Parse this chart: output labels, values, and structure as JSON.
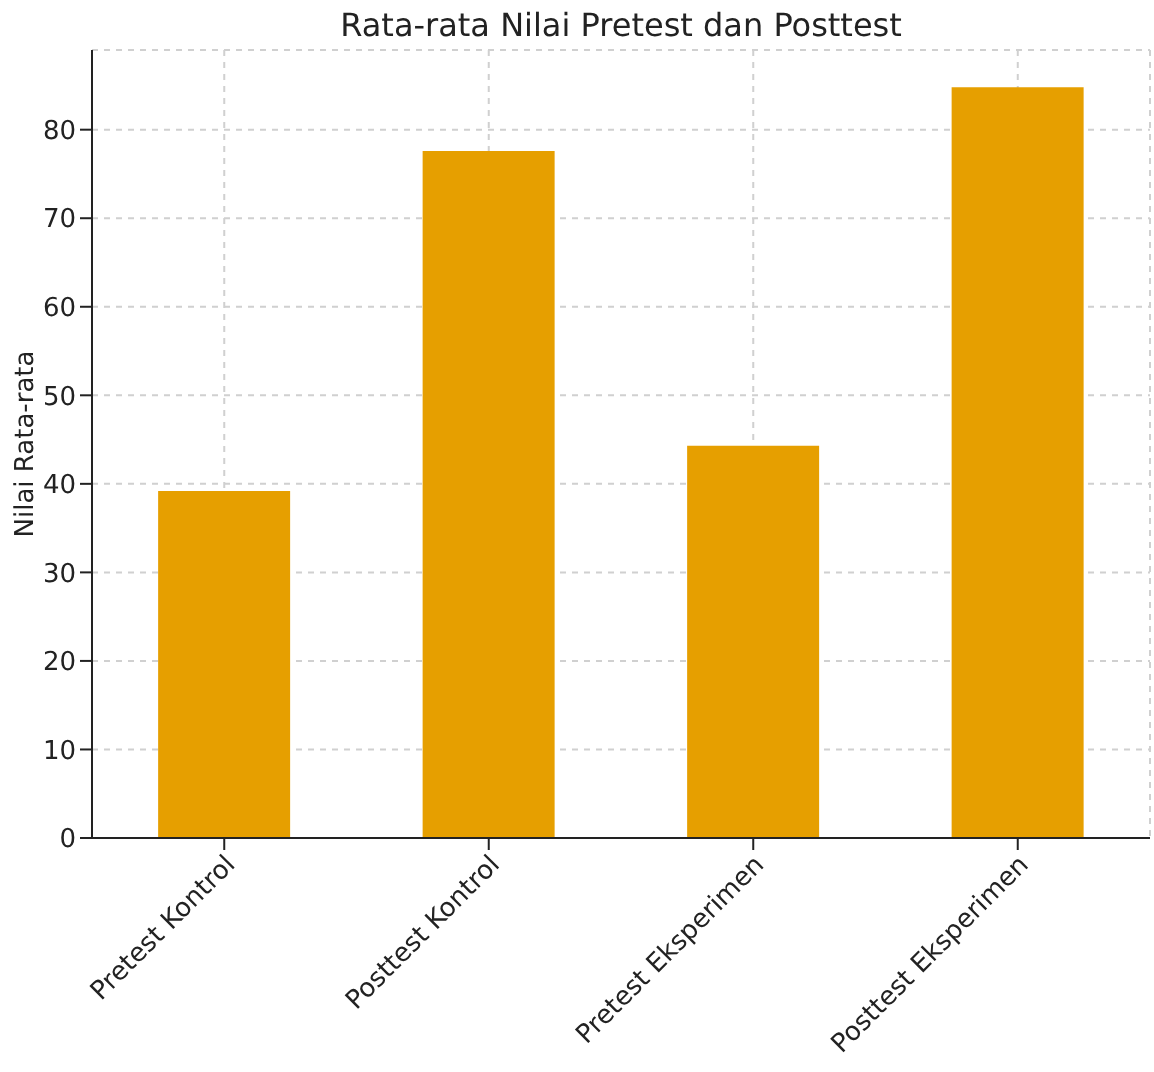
{
  "chart_data": {
    "type": "bar",
    "title": "Rata-rata Nilai Pretest dan Posttest",
    "ylabel": "Nilai Rata-rata",
    "categories": [
      "Pretest Kontrol",
      "Posttest Kontrol",
      "Pretest Eksperimen",
      "Posttest Eksperimen"
    ],
    "values": [
      39.2,
      77.6,
      44.3,
      84.8
    ],
    "color": "#e69f00",
    "ylim": [
      0,
      89
    ],
    "yticks": [
      0,
      10,
      20,
      30,
      40,
      50,
      60,
      70,
      80
    ],
    "grid": true
  }
}
